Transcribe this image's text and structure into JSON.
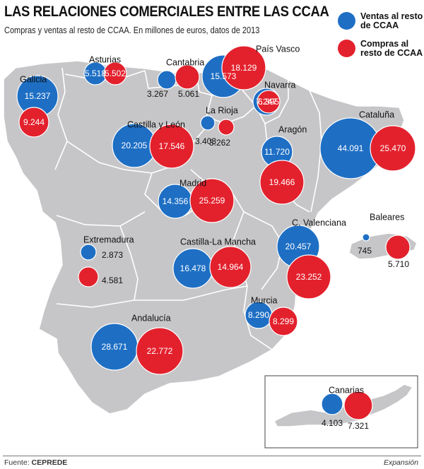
{
  "header": {
    "title": "LAS RELACIONES COMERCIALES ENTRE LAS CCAA",
    "subtitle": "Compras y ventas al resto de CCAA. En millones de euros, datos de 2013"
  },
  "legend": {
    "ventas": "Ventas al resto de CCAA",
    "compras": "Compras al resto de CCAA"
  },
  "colors": {
    "ventas": "#1e6fc4",
    "compras": "#e3212d",
    "land": "#c6c6c8",
    "border": "#ffffff"
  },
  "regions": [
    {
      "name": "Galicia",
      "ventas": "15.237",
      "compras": "9.244"
    },
    {
      "name": "Asturias",
      "ventas": "5.518",
      "compras": "5.502"
    },
    {
      "name": "Cantabria",
      "ventas": "3.267",
      "compras": "5.061"
    },
    {
      "name": "País Vasco",
      "ventas": "15.573",
      "compras": "18.129"
    },
    {
      "name": "Navarra",
      "ventas": "7.247",
      "compras": "6.395"
    },
    {
      "name": "La Rioja",
      "ventas": "3.403",
      "compras": "3.262"
    },
    {
      "name": "Castilla y León",
      "ventas": "20.205",
      "compras": "17.546"
    },
    {
      "name": "Aragón",
      "ventas": "11.720",
      "compras": "19.466"
    },
    {
      "name": "Cataluña",
      "ventas": "44.091",
      "compras": "25.470"
    },
    {
      "name": "Madrid",
      "ventas": "14.356",
      "compras": "25.259"
    },
    {
      "name": "Baleares",
      "ventas": "745",
      "compras": "5.710"
    },
    {
      "name": "C. Valenciana",
      "ventas": "20.457",
      "compras": "23.252"
    },
    {
      "name": "Extremadura",
      "ventas": "2.873",
      "compras": "4.581"
    },
    {
      "name": "Castilla-La Mancha",
      "ventas": "16.478",
      "compras": "14.964"
    },
    {
      "name": "Murcia",
      "ventas": "8.290",
      "compras": "8.299"
    },
    {
      "name": "Andalucía",
      "ventas": "28.671",
      "compras": "22.772"
    },
    {
      "name": "Canarias",
      "ventas": "4.103",
      "compras": "7.321"
    }
  ],
  "footer": {
    "source_label": "Fuente:",
    "source": "CEPREDE",
    "credit": "Expansión"
  }
}
